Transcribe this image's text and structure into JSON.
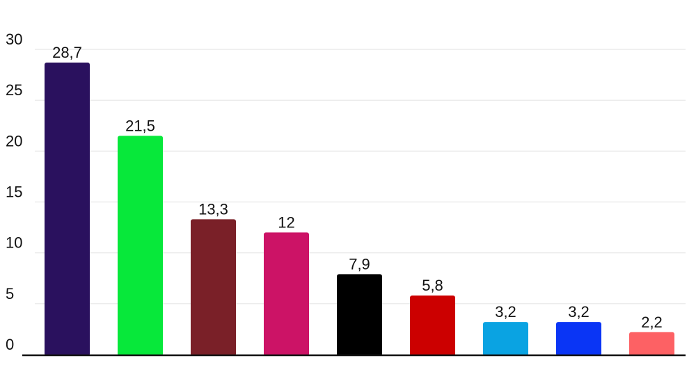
{
  "chart_data": {
    "type": "bar",
    "categories": [
      "",
      "",
      "",
      "",
      "",
      "",
      "",
      "",
      ""
    ],
    "values": [
      28.7,
      21.5,
      13.3,
      12,
      7.9,
      5.8,
      3.2,
      3.2,
      2.2
    ],
    "value_labels": [
      "28,7",
      "21,5",
      "13,3",
      "12",
      "7,9",
      "5,8",
      "3,2",
      "3,2",
      "2,2"
    ],
    "colors": [
      "#2a115e",
      "#07e83a",
      "#7a2028",
      "#cc1366",
      "#000000",
      "#cc0000",
      "#0aa3e2",
      "#0a35f5",
      "#fd6164"
    ],
    "title": "",
    "xlabel": "",
    "ylabel": "",
    "ylim": [
      0,
      30
    ],
    "yticks": [
      0,
      5,
      10,
      15,
      20,
      25,
      30
    ],
    "ytick_labels": [
      "0",
      "5",
      "10",
      "15",
      "20",
      "25",
      "30"
    ],
    "grid": true,
    "legend": "none"
  }
}
